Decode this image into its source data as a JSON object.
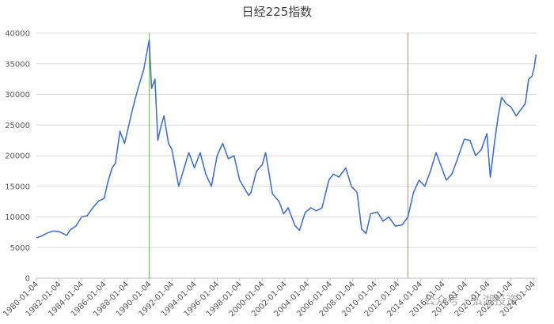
{
  "chart_data": {
    "type": "line",
    "title": "日经225指数",
    "watermark": "公众号 · 弘湖投资",
    "xlim": [
      1980,
      2024.3
    ],
    "ylim": [
      0,
      40000
    ],
    "yticks": [
      0,
      5000,
      10000,
      15000,
      20000,
      25000,
      30000,
      35000,
      40000
    ],
    "xticks": [
      {
        "value": 1980,
        "label": "1980-01-04"
      },
      {
        "value": 1982,
        "label": "1982-01-04"
      },
      {
        "value": 1984,
        "label": "1984-01-04"
      },
      {
        "value": 1986,
        "label": "1986-01-04"
      },
      {
        "value": 1988,
        "label": "1988-01-04"
      },
      {
        "value": 1990,
        "label": "1990-01-04"
      },
      {
        "value": 1992,
        "label": "1992-01-04"
      },
      {
        "value": 1994,
        "label": "1994-01-04"
      },
      {
        "value": 1996,
        "label": "1996-01-04"
      },
      {
        "value": 1998,
        "label": "1998-01-04"
      },
      {
        "value": 2000,
        "label": "2000-01-04"
      },
      {
        "value": 2002,
        "label": "2002-01-04"
      },
      {
        "value": 2004,
        "label": "2004-01-04"
      },
      {
        "value": 2006,
        "label": "2006-01-04"
      },
      {
        "value": 2008,
        "label": "2008-01-04"
      },
      {
        "value": 2010,
        "label": "2010-01-04"
      },
      {
        "value": 2012,
        "label": "2012-01-04"
      },
      {
        "value": 2014,
        "label": "2014-01-04"
      },
      {
        "value": 2016,
        "label": "2016-01-04"
      },
      {
        "value": 2018,
        "label": "2018-01-04"
      },
      {
        "value": 2020,
        "label": "2020-01-04"
      },
      {
        "value": 2022,
        "label": "2022-01-04"
      },
      {
        "value": 2024,
        "label": "2024-01-04"
      }
    ],
    "grid": true,
    "vlines": [
      {
        "x": 1990.0,
        "color": "#70ad47"
      },
      {
        "x": 2012.9,
        "color": "#ed7d31"
      }
    ],
    "x": [
      1980,
      1980.5,
      1981,
      1981.5,
      1982,
      1982.7,
      1983,
      1983.5,
      1984,
      1984.5,
      1985,
      1985.5,
      1986,
      1986.3,
      1986.7,
      1987,
      1987.4,
      1987.8,
      1988,
      1988.5,
      1989,
      1989.5,
      1989.99,
      1990.2,
      1990.5,
      1990.75,
      1991,
      1991.3,
      1991.7,
      1992,
      1992.6,
      1993,
      1993.5,
      1994,
      1994.5,
      1995,
      1995.5,
      1996,
      1996.5,
      1997,
      1997.5,
      1998,
      1998.8,
      1999,
      1999.5,
      2000,
      2000.3,
      2000.9,
      2001.5,
      2001.9,
      2002.3,
      2002.9,
      2003.3,
      2003.8,
      2004.3,
      2004.8,
      2005.3,
      2005.9,
      2006.3,
      2006.8,
      2007.4,
      2007.9,
      2008.4,
      2008.8,
      2009.2,
      2009.6,
      2010.2,
      2010.7,
      2011.2,
      2011.8,
      2012.4,
      2012.9,
      2013.4,
      2013.9,
      2014.4,
      2014.9,
      2015.4,
      2015.9,
      2016.3,
      2016.8,
      2017.3,
      2017.9,
      2018.4,
      2018.9,
      2019.4,
      2019.9,
      2020.2,
      2020.6,
      2020.9,
      2021.2,
      2021.6,
      2022.0,
      2022.5,
      2022.9,
      2023.3,
      2023.6,
      2023.9,
      2024.1,
      2024.25
    ],
    "series": [
      {
        "name": "日经225指数",
        "color": "#4472c4",
        "values": [
          6600,
          6900,
          7400,
          7700,
          7600,
          7000,
          7900,
          8500,
          10000,
          10200,
          11500,
          12600,
          13000,
          15500,
          18000,
          18800,
          24000,
          22000,
          23500,
          27500,
          31000,
          34000,
          38900,
          31000,
          32500,
          22500,
          24500,
          26500,
          22000,
          21000,
          15000,
          17500,
          20500,
          18000,
          20500,
          17000,
          15000,
          20000,
          22000,
          19500,
          20000,
          16000,
          13500,
          14000,
          17500,
          18500,
          20500,
          13800,
          12500,
          10500,
          11500,
          8600,
          7800,
          10700,
          11500,
          11000,
          11500,
          16000,
          17000,
          16500,
          18000,
          15000,
          14000,
          8000,
          7300,
          10500,
          10800,
          9300,
          10000,
          8500,
          8700,
          10000,
          14000,
          16000,
          15000,
          17500,
          20500,
          18000,
          16000,
          17000,
          19500,
          22700,
          22500,
          20000,
          21000,
          23600,
          16500,
          22500,
          26500,
          29500,
          28500,
          28000,
          26500,
          27500,
          28500,
          32500,
          33000,
          34500,
          36500
        ]
      }
    ]
  }
}
